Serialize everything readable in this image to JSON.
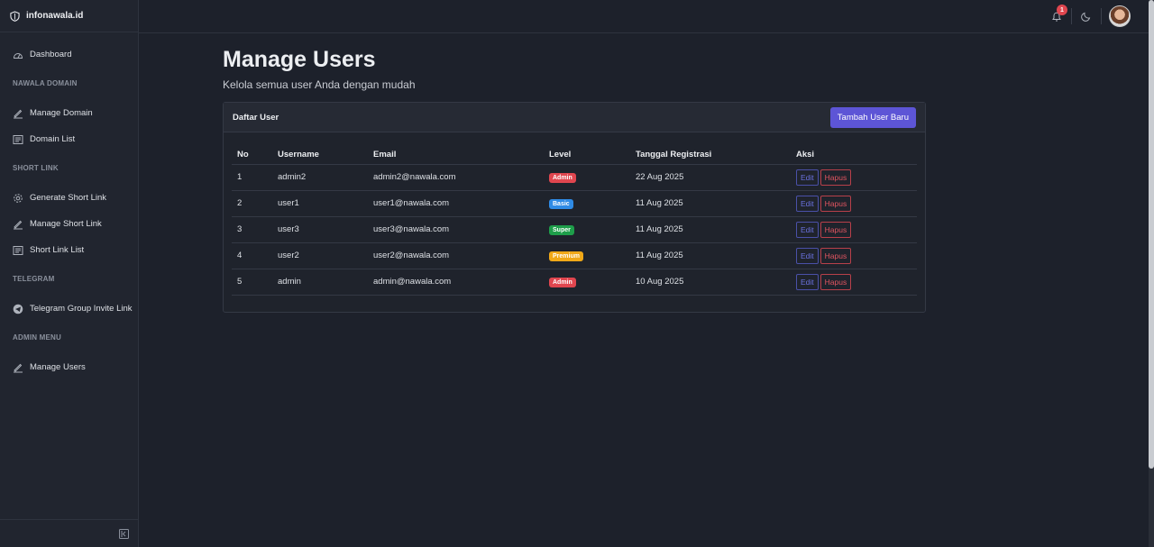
{
  "brand": {
    "name": "infonawala.id"
  },
  "sidebar": {
    "items": [
      {
        "type": "item",
        "label": "Dashboard",
        "icon": "dashboard-icon",
        "name": "sidebar-item-dashboard"
      },
      {
        "type": "section",
        "label": "NAWALA DOMAIN"
      },
      {
        "type": "item",
        "label": "Manage Domain",
        "icon": "pen-icon",
        "name": "sidebar-item-manage-domain"
      },
      {
        "type": "item",
        "label": "Domain List",
        "icon": "list-icon",
        "name": "sidebar-item-domain-list"
      },
      {
        "type": "section",
        "label": "SHORT LINK"
      },
      {
        "type": "item",
        "label": "Generate Short Link",
        "icon": "gear-icon",
        "name": "sidebar-item-generate-short-link"
      },
      {
        "type": "item",
        "label": "Manage Short Link",
        "icon": "pen-icon",
        "name": "sidebar-item-manage-short-link"
      },
      {
        "type": "item",
        "label": "Short Link List",
        "icon": "list-icon",
        "name": "sidebar-item-short-link-list"
      },
      {
        "type": "section",
        "label": "TELEGRAM"
      },
      {
        "type": "item",
        "label": "Telegram Group Invite Link",
        "icon": "telegram-icon",
        "name": "sidebar-item-telegram"
      },
      {
        "type": "section",
        "label": "ADMIN MENU"
      },
      {
        "type": "item",
        "label": "Manage Users",
        "icon": "pen-icon",
        "name": "sidebar-item-manage-users"
      }
    ]
  },
  "topbar": {
    "notification_count": "1"
  },
  "main": {
    "title": "Manage Users",
    "subtitle": "Kelola semua user Anda dengan mudah"
  },
  "card": {
    "title": "Daftar User",
    "add_button": "Tambah User Baru",
    "columns": [
      "No",
      "Username",
      "Email",
      "Level",
      "Tanggal Registrasi",
      "Aksi"
    ],
    "edit_label": "Edit",
    "delete_label": "Hapus",
    "rows": [
      {
        "no": "1",
        "username": "admin2",
        "email": "admin2@nawala.com",
        "level": "Admin",
        "level_color": "#e0464f",
        "date": "22 Aug 2025"
      },
      {
        "no": "2",
        "username": "user1",
        "email": "user1@nawala.com",
        "level": "Basic",
        "level_color": "#2f8be6",
        "date": "11 Aug 2025"
      },
      {
        "no": "3",
        "username": "user3",
        "email": "user3@nawala.com",
        "level": "Super",
        "level_color": "#1e9e4a",
        "date": "11 Aug 2025"
      },
      {
        "no": "4",
        "username": "user2",
        "email": "user2@nawala.com",
        "level": "Premium",
        "level_color": "#f0a818",
        "date": "11 Aug 2025"
      },
      {
        "no": "5",
        "username": "admin",
        "email": "admin@nawala.com",
        "level": "Admin",
        "level_color": "#e0464f",
        "date": "10 Aug 2025"
      }
    ]
  }
}
